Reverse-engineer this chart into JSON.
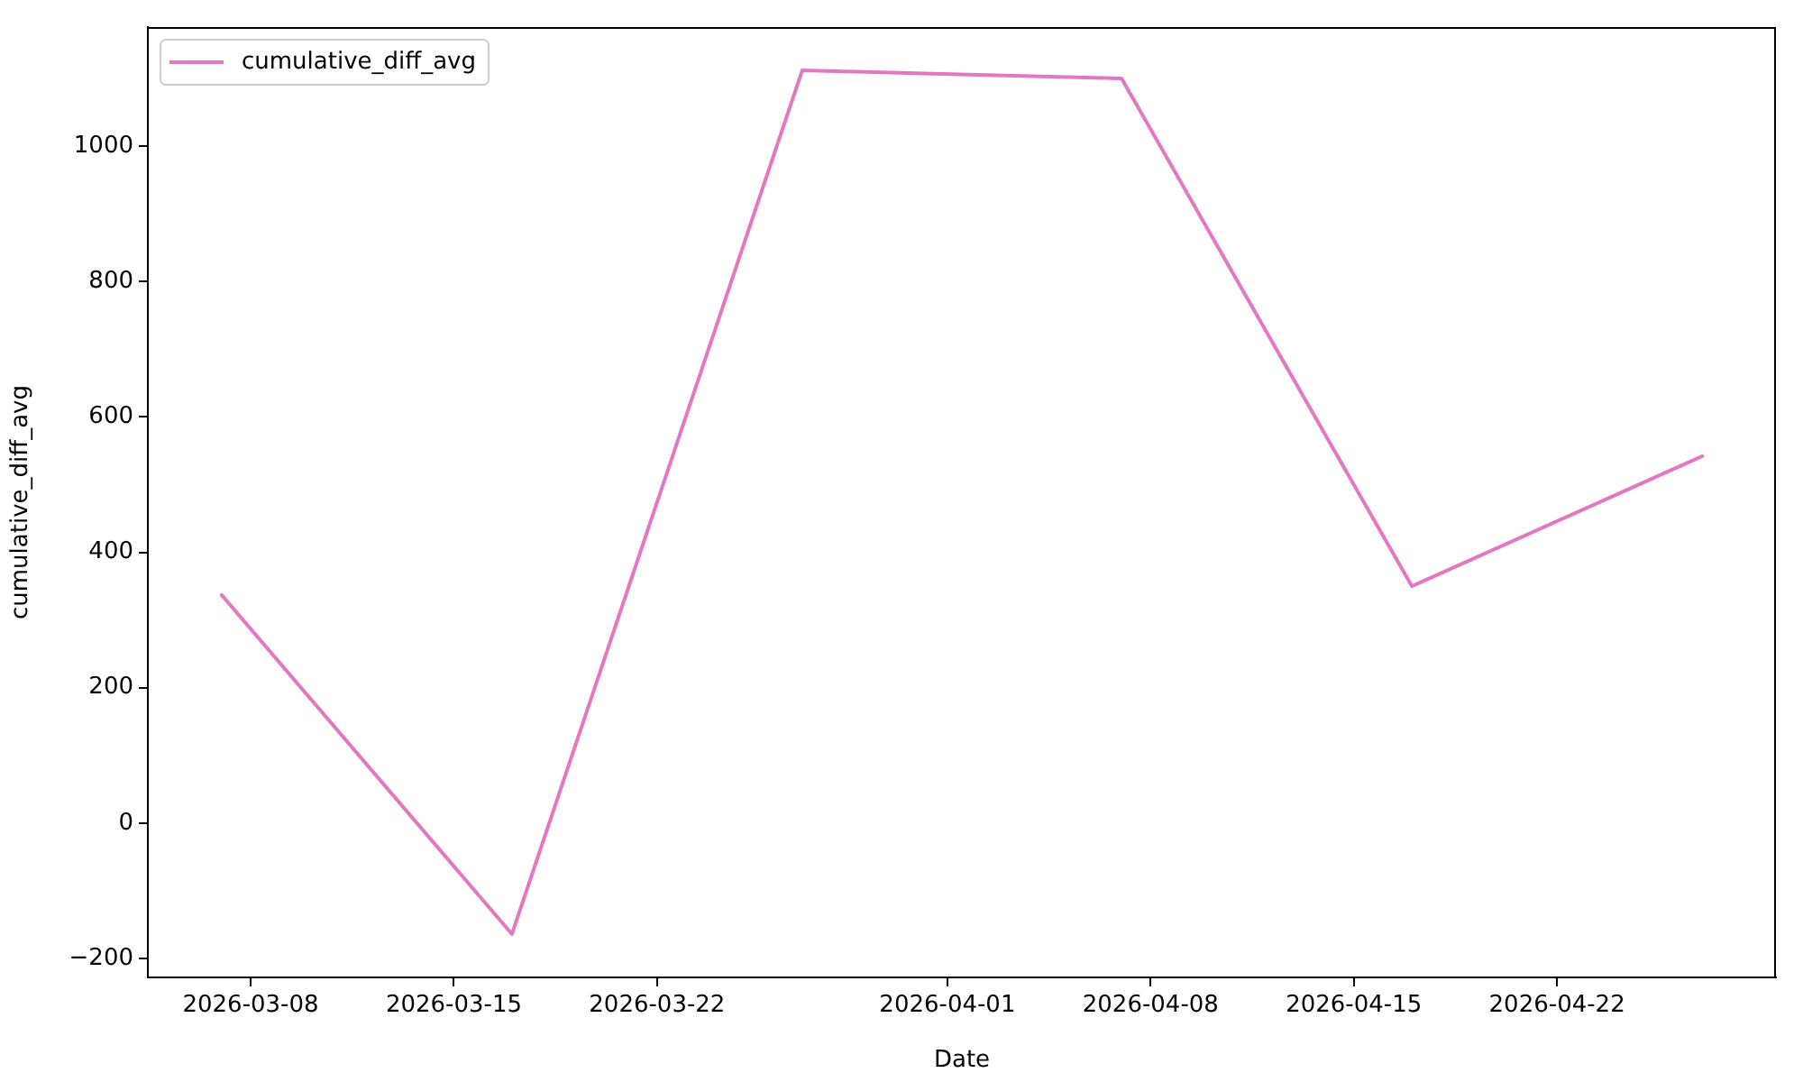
{
  "chart_data": {
    "type": "line",
    "xlabel": "Date",
    "ylabel": "cumulative_diff_avg",
    "x": [
      "2026-03-07",
      "2026-03-17",
      "2026-03-27",
      "2026-04-07",
      "2026-04-17",
      "2026-04-27"
    ],
    "series": [
      {
        "name": "cumulative_diff_avg",
        "color": "#e377c2",
        "values": [
          337,
          -164,
          1112,
          1100,
          350,
          542
        ]
      }
    ],
    "xlim": [
      "2026-03-04T11:00",
      "2026-04-29T13:00"
    ],
    "xticks": [
      "2026-03-08",
      "2026-03-15",
      "2026-03-22",
      "2026-04-01",
      "2026-04-08",
      "2026-04-15",
      "2026-04-22"
    ],
    "ylim": [
      -228,
      1176
    ],
    "yticks": [
      {
        "value": -200,
        "label": "−200"
      },
      0,
      200,
      400,
      600,
      800,
      1000
    ],
    "legend": "top left"
  }
}
